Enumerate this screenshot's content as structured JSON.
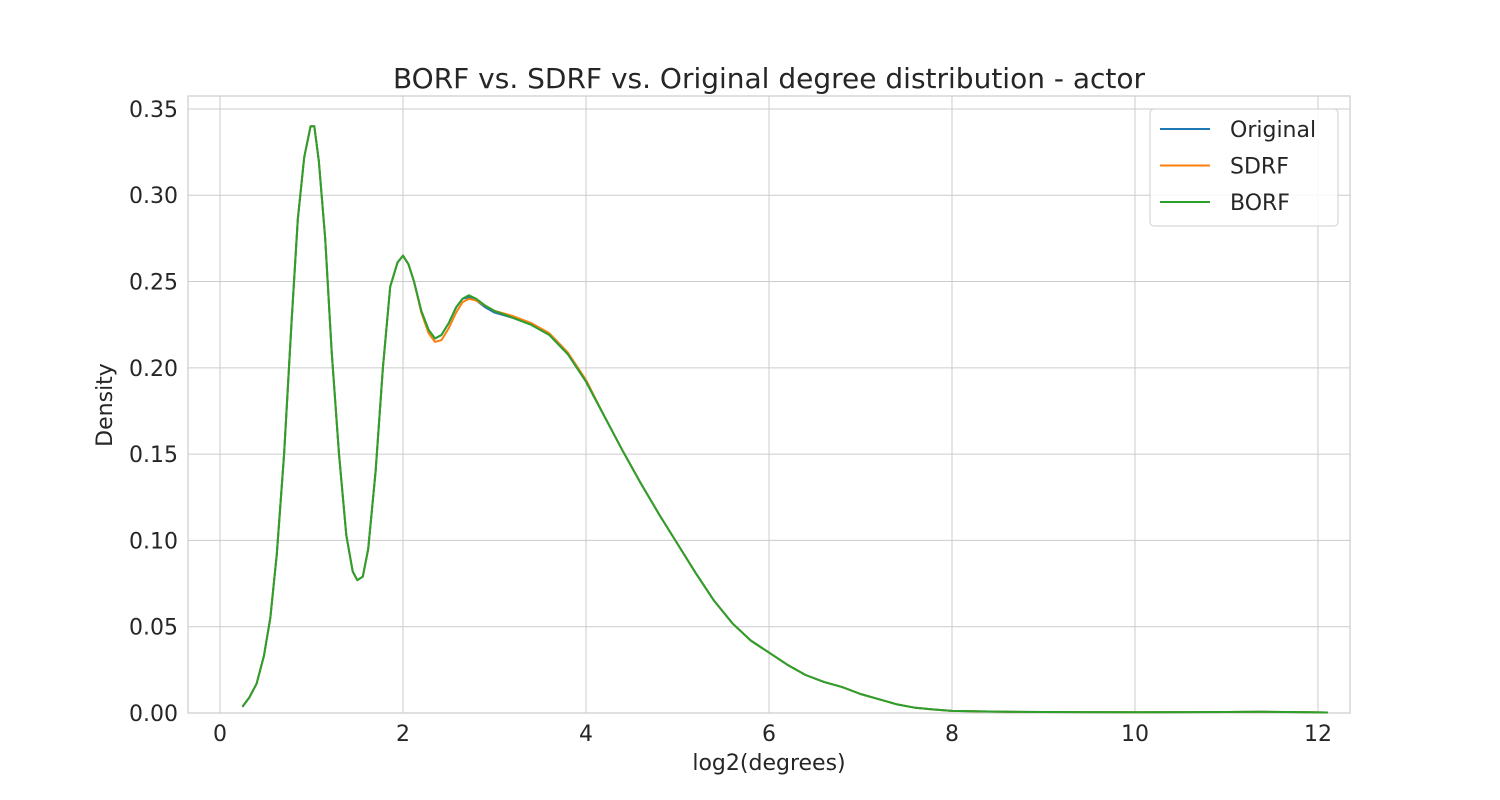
{
  "chart_data": {
    "type": "line",
    "title": "BORF vs. SDRF vs. Original degree distribution - actor",
    "xlabel": "log2(degrees)",
    "ylabel": "Density",
    "xlim": [
      -0.35,
      12.35
    ],
    "ylim": [
      0,
      0.3575
    ],
    "xticks": [
      0,
      2,
      4,
      6,
      8,
      10,
      12
    ],
    "xtick_labels": [
      "0",
      "2",
      "4",
      "6",
      "8",
      "10",
      "12"
    ],
    "yticks": [
      0,
      0.05,
      0.1,
      0.15,
      0.2,
      0.25,
      0.3,
      0.35
    ],
    "ytick_labels": [
      "0.00",
      "0.05",
      "0.10",
      "0.15",
      "0.20",
      "0.25",
      "0.30",
      "0.35"
    ],
    "grid": true,
    "legend_position": "top-right",
    "series": [
      {
        "name": "Original",
        "color": "#1f77b4",
        "x": [
          0.25,
          0.32,
          0.4,
          0.48,
          0.55,
          0.62,
          0.7,
          0.78,
          0.85,
          0.92,
          0.99,
          1.03,
          1.08,
          1.15,
          1.22,
          1.3,
          1.38,
          1.45,
          1.5,
          1.56,
          1.62,
          1.7,
          1.78,
          1.86,
          1.94,
          2.0,
          2.06,
          2.12,
          2.2,
          2.28,
          2.35,
          2.42,
          2.5,
          2.58,
          2.65,
          2.72,
          2.8,
          2.9,
          3.0,
          3.2,
          3.4,
          3.6,
          3.8,
          4.0,
          4.2,
          4.4,
          4.6,
          4.8,
          5.0,
          5.2,
          5.4,
          5.6,
          5.8,
          6.0,
          6.2,
          6.4,
          6.6,
          6.8,
          7.0,
          7.2,
          7.4,
          7.6,
          7.8,
          8.0,
          8.3,
          8.6,
          9.0,
          9.5,
          10.0,
          10.5,
          11.0,
          11.4,
          11.8,
          12.1
        ],
        "values": [
          0.004,
          0.009,
          0.017,
          0.033,
          0.055,
          0.092,
          0.15,
          0.225,
          0.286,
          0.322,
          0.34,
          0.34,
          0.32,
          0.275,
          0.21,
          0.15,
          0.103,
          0.082,
          0.077,
          0.079,
          0.095,
          0.14,
          0.2,
          0.247,
          0.261,
          0.265,
          0.26,
          0.25,
          0.233,
          0.222,
          0.217,
          0.219,
          0.226,
          0.235,
          0.24,
          0.241,
          0.239,
          0.235,
          0.232,
          0.229,
          0.225,
          0.219,
          0.208,
          0.192,
          0.172,
          0.152,
          0.133,
          0.115,
          0.098,
          0.081,
          0.065,
          0.052,
          0.042,
          0.035,
          0.028,
          0.022,
          0.018,
          0.015,
          0.011,
          0.008,
          0.005,
          0.003,
          0.002,
          0.0012,
          0.0009,
          0.0007,
          0.0006,
          0.0005,
          0.0004,
          0.0005,
          0.0006,
          0.0007,
          0.0005,
          0.0003
        ]
      },
      {
        "name": "SDRF",
        "color": "#ff7f0e",
        "x": [
          0.25,
          0.32,
          0.4,
          0.48,
          0.55,
          0.62,
          0.7,
          0.78,
          0.85,
          0.92,
          0.99,
          1.03,
          1.08,
          1.15,
          1.22,
          1.3,
          1.38,
          1.45,
          1.5,
          1.56,
          1.62,
          1.7,
          1.78,
          1.86,
          1.94,
          2.0,
          2.06,
          2.12,
          2.2,
          2.28,
          2.35,
          2.42,
          2.5,
          2.58,
          2.65,
          2.72,
          2.8,
          2.9,
          3.0,
          3.2,
          3.4,
          3.6,
          3.8,
          4.0,
          4.2,
          4.4,
          4.6,
          4.8,
          5.0,
          5.2,
          5.4,
          5.6,
          5.8,
          6.0,
          6.2,
          6.4,
          6.6,
          6.8,
          7.0,
          7.2,
          7.4,
          7.6,
          7.8,
          8.0,
          8.3,
          8.6,
          9.0,
          9.5,
          10.0,
          10.5,
          11.0,
          11.4,
          11.8,
          12.1
        ],
        "values": [
          0.004,
          0.009,
          0.017,
          0.033,
          0.055,
          0.092,
          0.15,
          0.225,
          0.286,
          0.322,
          0.34,
          0.34,
          0.32,
          0.275,
          0.21,
          0.15,
          0.103,
          0.082,
          0.077,
          0.079,
          0.095,
          0.14,
          0.2,
          0.247,
          0.261,
          0.265,
          0.26,
          0.25,
          0.232,
          0.22,
          0.215,
          0.216,
          0.223,
          0.232,
          0.238,
          0.24,
          0.239,
          0.236,
          0.233,
          0.23,
          0.226,
          0.22,
          0.209,
          0.193,
          0.172,
          0.152,
          0.133,
          0.115,
          0.098,
          0.081,
          0.065,
          0.052,
          0.042,
          0.035,
          0.028,
          0.022,
          0.018,
          0.015,
          0.011,
          0.008,
          0.005,
          0.003,
          0.002,
          0.0012,
          0.0009,
          0.0007,
          0.0006,
          0.0005,
          0.0004,
          0.0005,
          0.0006,
          0.0007,
          0.0005,
          0.0003
        ]
      },
      {
        "name": "BORF",
        "color": "#2ca02c",
        "x": [
          0.25,
          0.32,
          0.4,
          0.48,
          0.55,
          0.62,
          0.7,
          0.78,
          0.85,
          0.92,
          0.99,
          1.03,
          1.08,
          1.15,
          1.22,
          1.3,
          1.38,
          1.45,
          1.5,
          1.56,
          1.62,
          1.7,
          1.78,
          1.86,
          1.94,
          2.0,
          2.06,
          2.12,
          2.2,
          2.28,
          2.35,
          2.42,
          2.5,
          2.58,
          2.65,
          2.72,
          2.8,
          2.9,
          3.0,
          3.2,
          3.4,
          3.6,
          3.8,
          4.0,
          4.2,
          4.4,
          4.6,
          4.8,
          5.0,
          5.2,
          5.4,
          5.6,
          5.8,
          6.0,
          6.2,
          6.4,
          6.6,
          6.8,
          7.0,
          7.2,
          7.4,
          7.6,
          7.8,
          8.0,
          8.3,
          8.6,
          9.0,
          9.5,
          10.0,
          10.5,
          11.0,
          11.4,
          11.8,
          12.1
        ],
        "values": [
          0.004,
          0.009,
          0.017,
          0.033,
          0.055,
          0.092,
          0.15,
          0.225,
          0.286,
          0.322,
          0.34,
          0.34,
          0.32,
          0.275,
          0.21,
          0.15,
          0.103,
          0.082,
          0.077,
          0.079,
          0.095,
          0.14,
          0.2,
          0.247,
          0.261,
          0.265,
          0.26,
          0.25,
          0.233,
          0.222,
          0.217,
          0.219,
          0.226,
          0.235,
          0.24,
          0.242,
          0.24,
          0.236,
          0.233,
          0.229,
          0.225,
          0.219,
          0.208,
          0.192,
          0.172,
          0.152,
          0.133,
          0.115,
          0.098,
          0.081,
          0.065,
          0.052,
          0.042,
          0.035,
          0.028,
          0.022,
          0.018,
          0.015,
          0.011,
          0.008,
          0.005,
          0.003,
          0.002,
          0.0012,
          0.0009,
          0.0007,
          0.0006,
          0.0005,
          0.0004,
          0.0005,
          0.0006,
          0.0007,
          0.0005,
          0.0003
        ]
      }
    ]
  }
}
